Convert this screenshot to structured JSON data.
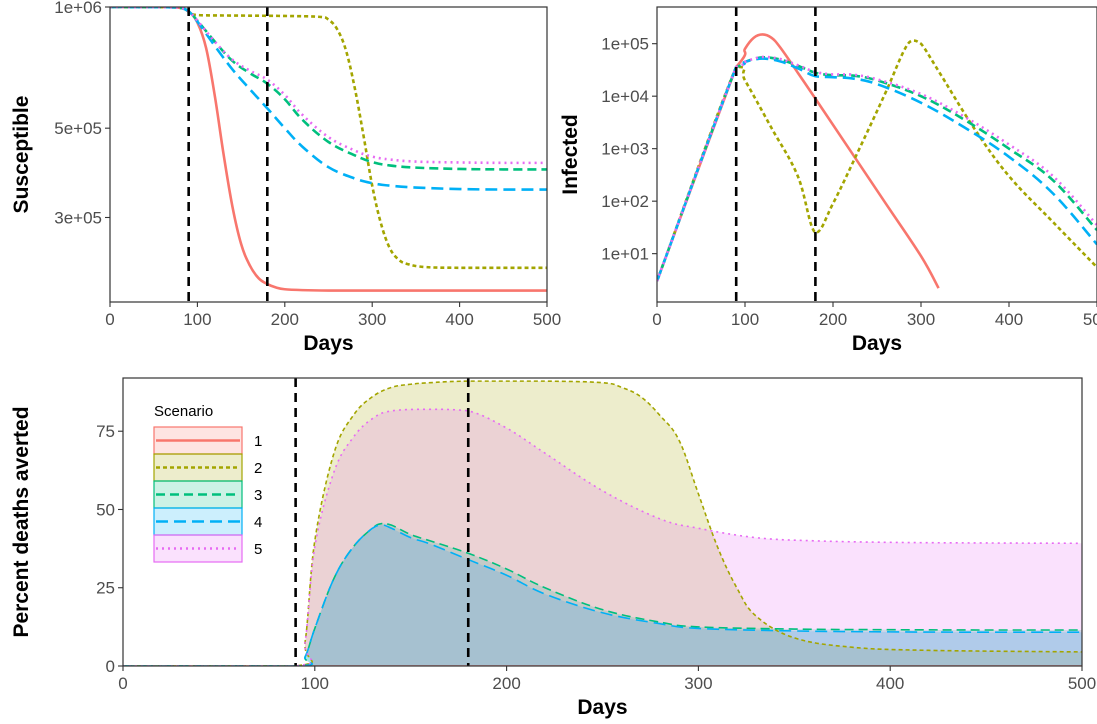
{
  "colors": {
    "s1": "#F8766D",
    "s2": "#A3A500",
    "s3": "#00BF7D",
    "s4": "#00B0F6",
    "s5": "#E76BF3"
  },
  "chart_data": [
    {
      "type": "line",
      "panel": "susceptible",
      "xlabel": "Days",
      "ylabel": "Susceptible",
      "y_scale": "log",
      "xlim": [
        0,
        500
      ],
      "ylim": [
        185000,
        1000000
      ],
      "x_ticks": [
        0,
        100,
        200,
        300,
        400,
        500
      ],
      "x_tick_labels": [
        "0",
        "100",
        "200",
        "300",
        "400",
        "500"
      ],
      "y_ticks": [
        1000000,
        500000,
        300000
      ],
      "y_tick_labels": [
        "1e+06",
        "5e+05",
        "3e+05"
      ],
      "vlines": [
        90,
        180
      ],
      "grid": false,
      "series": [
        {
          "name": "1",
          "x": [
            0,
            60,
            80,
            90,
            100,
            110,
            120,
            130,
            140,
            150,
            160,
            170,
            180,
            190,
            200,
            220,
            250,
            300,
            400,
            500
          ],
          "values": [
            1000000,
            999500,
            995000,
            975000,
            915000,
            790000,
            600000,
            430000,
            320000,
            258000,
            228000,
            212000,
            205000,
            201000,
            199000,
            198000,
            197500,
            197500,
            197500,
            197500
          ]
        },
        {
          "name": "2",
          "x": [
            0,
            60,
            80,
            90,
            100,
            150,
            200,
            240,
            250,
            260,
            270,
            280,
            290,
            300,
            310,
            320,
            330,
            340,
            360,
            400,
            500
          ],
          "values": [
            1000000,
            999500,
            995000,
            975000,
            955000,
            952000,
            950000,
            945000,
            930000,
            880000,
            780000,
            630000,
            480000,
            360000,
            290000,
            252000,
            236000,
            230000,
            226000,
            225000,
            225000
          ]
        },
        {
          "name": "3",
          "x": [
            0,
            60,
            80,
            90,
            100,
            120,
            140,
            160,
            180,
            200,
            220,
            250,
            280,
            300,
            320,
            350,
            400,
            450,
            500
          ],
          "values": [
            1000000,
            999500,
            995000,
            975000,
            925000,
            820000,
            735000,
            685000,
            645000,
            590000,
            525000,
            462000,
            428000,
            412000,
            404000,
            399000,
            396000,
            395000,
            395000
          ]
        },
        {
          "name": "4",
          "x": [
            0,
            60,
            80,
            90,
            100,
            120,
            140,
            160,
            180,
            200,
            220,
            250,
            280,
            300,
            320,
            350,
            400,
            450,
            500
          ],
          "values": [
            1000000,
            999500,
            995000,
            975000,
            920000,
            800000,
            700000,
            625000,
            560000,
            500000,
            450000,
            400000,
            375000,
            365000,
            360000,
            356000,
            353000,
            352000,
            352000
          ]
        },
        {
          "name": "5",
          "x": [
            0,
            60,
            80,
            90,
            100,
            120,
            140,
            160,
            180,
            200,
            220,
            250,
            280,
            300,
            320,
            350,
            400,
            450,
            500
          ],
          "values": [
            1000000,
            999500,
            995000,
            975000,
            925000,
            820000,
            740000,
            695000,
            660000,
            605000,
            540000,
            475000,
            440000,
            425000,
            418000,
            413000,
            411000,
            410000,
            410000
          ]
        }
      ]
    },
    {
      "type": "line",
      "panel": "infected",
      "xlabel": "Days",
      "ylabel": "Infected",
      "y_scale": "log",
      "xlim": [
        0,
        500
      ],
      "ylim": [
        1.2,
        500000
      ],
      "x_ticks": [
        0,
        100,
        200,
        300,
        400,
        500
      ],
      "x_tick_labels": [
        "0",
        "100",
        "200",
        "300",
        "400",
        "500"
      ],
      "y_ticks": [
        100000,
        10000,
        1000,
        100,
        10
      ],
      "y_tick_labels": [
        "1e+05",
        "1e+04",
        "1e+03",
        "1e+02",
        "1e+01"
      ],
      "vlines": [
        90,
        180
      ],
      "grid": false,
      "series": [
        {
          "name": "1",
          "x": [
            0,
            90,
            100,
            110,
            120,
            130,
            140,
            160,
            180,
            220,
            260,
            300,
            320
          ],
          "values": [
            3,
            36000,
            80000,
            130000,
            150000,
            130000,
            85000,
            28000,
            9000,
            900,
            90,
            9,
            2.2
          ]
        },
        {
          "name": "2",
          "x": [
            0,
            90,
            100,
            130,
            160,
            180,
            200,
            230,
            260,
            280,
            290,
            300,
            320,
            360,
            400,
            450,
            500
          ],
          "values": [
            3,
            36000,
            20000,
            2500,
            300,
            25,
            90,
            1000,
            12000,
            70000,
            115000,
            100000,
            30000,
            2500,
            300,
            40,
            5.5
          ]
        },
        {
          "name": "3",
          "x": [
            0,
            90,
            100,
            120,
            140,
            160,
            180,
            200,
            220,
            250,
            300,
            350,
            400,
            450,
            500
          ],
          "values": [
            3,
            36000,
            45000,
            55000,
            50000,
            38000,
            28000,
            25000,
            25000,
            20000,
            10000,
            3500,
            1000,
            250,
            28
          ]
        },
        {
          "name": "4",
          "x": [
            0,
            90,
            100,
            120,
            140,
            160,
            180,
            200,
            220,
            250,
            300,
            350,
            400,
            450,
            500
          ],
          "values": [
            3,
            36000,
            45000,
            52000,
            46000,
            34000,
            24000,
            23000,
            22000,
            17000,
            7500,
            2500,
            700,
            140,
            15
          ]
        },
        {
          "name": "5",
          "x": [
            0,
            90,
            100,
            120,
            140,
            160,
            180,
            200,
            220,
            250,
            300,
            350,
            400,
            450,
            500
          ],
          "values": [
            3,
            36000,
            45000,
            56000,
            51000,
            39000,
            29000,
            26000,
            26000,
            21000,
            11000,
            4000,
            1200,
            300,
            35
          ]
        }
      ]
    },
    {
      "type": "area",
      "panel": "deaths-averted",
      "xlabel": "Days",
      "ylabel": "Percent deaths averted",
      "xlim": [
        0,
        500
      ],
      "ylim": [
        0,
        92
      ],
      "x_ticks": [
        0,
        100,
        200,
        300,
        400,
        500
      ],
      "x_tick_labels": [
        "0",
        "100",
        "200",
        "300",
        "400",
        "500"
      ],
      "y_ticks": [
        0,
        25,
        50,
        75
      ],
      "y_tick_labels": [
        "0",
        "25",
        "50",
        "75"
      ],
      "vlines": [
        90,
        180
      ],
      "grid": false,
      "legend": {
        "title": "Scenario",
        "position": "top-left"
      },
      "series": [
        {
          "name": "1",
          "x": [
            0,
            500
          ],
          "values": [
            0,
            0
          ]
        },
        {
          "name": "2",
          "x": [
            0,
            90,
            95,
            100,
            110,
            120,
            130,
            140,
            150,
            160,
            180,
            220,
            250,
            260,
            270,
            280,
            290,
            300,
            310,
            320,
            330,
            350,
            380,
            420,
            500
          ],
          "values": [
            0,
            0,
            8,
            40,
            68,
            80,
            86,
            89,
            90,
            90.5,
            91,
            91,
            90.5,
            89,
            86,
            80,
            72,
            55,
            38,
            25,
            16,
            9,
            6,
            5,
            4.5
          ]
        },
        {
          "name": "3",
          "x": [
            0,
            90,
            95,
            100,
            110,
            120,
            130,
            135,
            140,
            150,
            160,
            180,
            200,
            220,
            250,
            280,
            300,
            350,
            400,
            450,
            500
          ],
          "values": [
            0,
            0,
            3,
            12,
            28,
            38,
            44,
            45.5,
            45,
            42,
            40,
            36,
            31,
            25,
            18,
            14,
            12.5,
            11.8,
            11.6,
            11.5,
            11.5
          ]
        },
        {
          "name": "4",
          "x": [
            0,
            90,
            95,
            100,
            110,
            120,
            130,
            135,
            140,
            150,
            160,
            180,
            200,
            220,
            250,
            280,
            300,
            350,
            400,
            450,
            500
          ],
          "values": [
            0,
            0,
            3,
            12,
            28,
            38,
            44,
            45,
            44,
            41,
            39,
            34,
            29,
            23,
            17,
            13.5,
            12,
            11.2,
            10.9,
            10.8,
            10.8
          ]
        },
        {
          "name": "5",
          "x": [
            0,
            90,
            95,
            100,
            110,
            120,
            130,
            140,
            160,
            180,
            200,
            220,
            250,
            280,
            300,
            330,
            360,
            400,
            450,
            500
          ],
          "values": [
            0,
            0,
            8,
            38,
            62,
            73,
            79,
            81.5,
            82,
            81.5,
            76,
            68,
            56,
            47,
            44,
            41,
            40,
            39.5,
            39.3,
            39.2
          ]
        }
      ]
    }
  ]
}
